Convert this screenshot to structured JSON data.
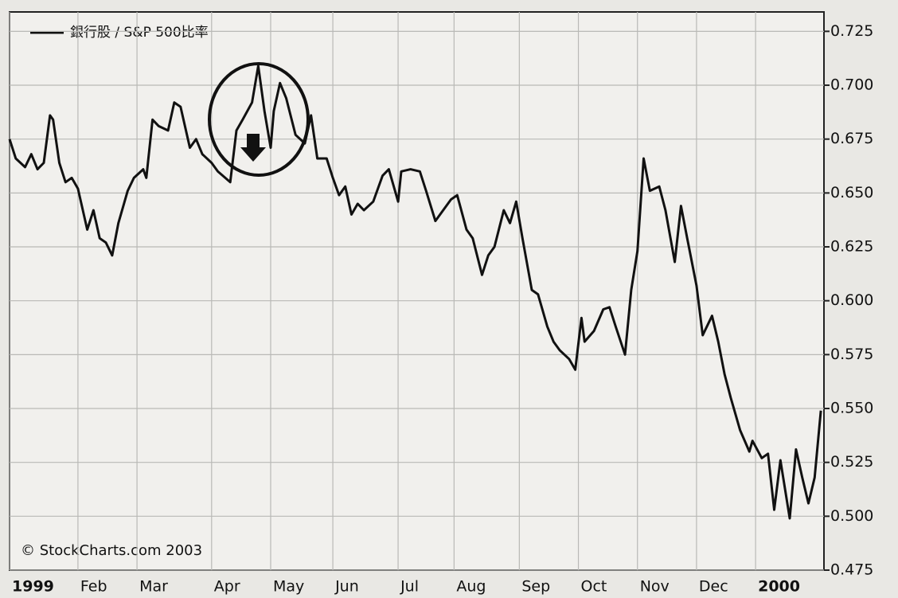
{
  "chart_data": {
    "type": "line",
    "legend": "銀行股 / S&P 500比率",
    "annotation": "© StockCharts.com 2003",
    "xlim": [
      0,
      262
    ],
    "xticks": [
      {
        "value": 0,
        "label": "1999"
      },
      {
        "value": 22,
        "label": "Feb"
      },
      {
        "value": 41,
        "label": "Mar"
      },
      {
        "value": 65,
        "label": "Apr"
      },
      {
        "value": 84,
        "label": "May"
      },
      {
        "value": 104,
        "label": "Jun"
      },
      {
        "value": 125,
        "label": "Jul"
      },
      {
        "value": 143,
        "label": "Aug"
      },
      {
        "value": 164,
        "label": "Sep"
      },
      {
        "value": 183,
        "label": "Oct"
      },
      {
        "value": 202,
        "label": "Nov"
      },
      {
        "value": 221,
        "label": "Dec"
      },
      {
        "value": 240,
        "label": "2000"
      }
    ],
    "ylim": [
      0.475,
      0.734
    ],
    "yticks": [
      0.475,
      {
        "value": 0.5,
        "label": "0.500"
      },
      0.525,
      {
        "value": 0.55,
        "label": "0.550"
      },
      0.575,
      {
        "value": 0.6,
        "label": "0.600"
      },
      0.625,
      {
        "value": 0.65,
        "label": "0.650"
      },
      0.675,
      {
        "value": 0.7,
        "label": "0.700"
      },
      0.725
    ],
    "grid": true,
    "color": "#111111",
    "x": [
      0,
      2,
      5,
      7,
      9,
      11,
      13,
      14,
      16,
      18,
      20,
      22,
      25,
      27,
      29,
      31,
      33,
      35,
      38,
      40,
      43,
      44,
      46,
      48,
      51,
      53,
      55,
      58,
      60,
      62,
      65,
      67,
      71,
      73,
      75,
      78,
      80,
      82,
      84,
      85,
      87,
      89,
      92,
      95,
      97,
      99,
      102,
      104,
      106,
      108,
      110,
      112,
      114,
      117,
      120,
      122,
      125,
      126,
      129,
      132,
      134,
      137,
      139,
      142,
      144,
      147,
      149,
      152,
      154,
      156,
      159,
      161,
      163,
      165,
      168,
      170,
      173,
      175,
      177,
      180,
      182,
      184,
      185,
      188,
      191,
      193,
      195,
      198,
      200,
      202,
      204,
      206,
      209,
      211,
      214,
      216,
      218,
      221,
      223,
      226,
      228,
      230,
      232,
      235,
      238,
      239,
      242,
      244,
      246,
      248,
      251,
      253,
      255,
      257,
      259,
      261
    ],
    "values": [
      0.675,
      0.666,
      0.662,
      0.668,
      0.661,
      0.664,
      0.686,
      0.684,
      0.664,
      0.655,
      0.657,
      0.652,
      0.633,
      0.642,
      0.629,
      0.627,
      0.621,
      0.636,
      0.651,
      0.657,
      0.661,
      0.657,
      0.684,
      0.681,
      0.679,
      0.692,
      0.69,
      0.671,
      0.675,
      0.668,
      0.664,
      0.66,
      0.655,
      0.679,
      0.684,
      0.692,
      0.709,
      0.688,
      0.671,
      0.688,
      0.701,
      0.694,
      0.677,
      0.673,
      0.686,
      0.666,
      0.666,
      0.657,
      0.649,
      0.653,
      0.64,
      0.645,
      0.642,
      0.646,
      0.658,
      0.661,
      0.646,
      0.66,
      0.661,
      0.66,
      0.651,
      0.637,
      0.641,
      0.647,
      0.649,
      0.633,
      0.629,
      0.612,
      0.621,
      0.625,
      0.642,
      0.636,
      0.646,
      0.629,
      0.605,
      0.603,
      0.588,
      0.581,
      0.577,
      0.573,
      0.568,
      0.592,
      0.581,
      0.586,
      0.596,
      0.597,
      0.588,
      0.575,
      0.605,
      0.623,
      0.666,
      0.651,
      0.653,
      0.642,
      0.618,
      0.644,
      0.629,
      0.607,
      0.584,
      0.593,
      0.581,
      0.566,
      0.555,
      0.54,
      0.53,
      0.535,
      0.527,
      0.529,
      0.503,
      0.526,
      0.499,
      0.531,
      0.518,
      0.506,
      0.518,
      0.549
    ]
  }
}
